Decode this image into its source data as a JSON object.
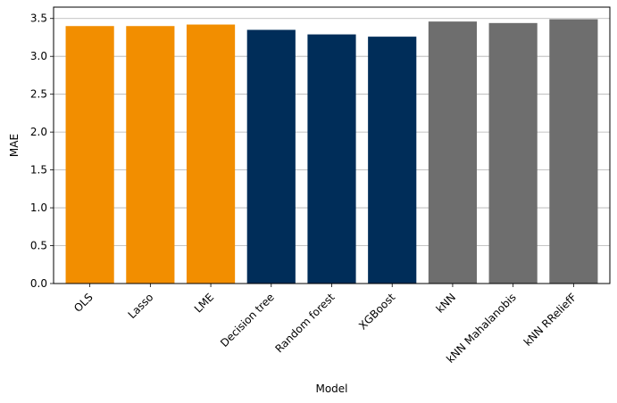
{
  "chart_data": {
    "type": "bar",
    "title": "",
    "xlabel": "Model",
    "ylabel": "MAE",
    "categories": [
      "OLS",
      "Lasso",
      "LME",
      "Decision tree",
      "Random forest",
      "XGBoost",
      "kNN",
      "kNN Mahalanobis",
      "kNN RReliefF"
    ],
    "values": [
      3.4,
      3.4,
      3.42,
      3.35,
      3.29,
      3.26,
      3.46,
      3.44,
      3.49
    ],
    "bar_colors": [
      "#f28e00",
      "#f28e00",
      "#f28e00",
      "#002d59",
      "#002d59",
      "#002d59",
      "#6e6e6e",
      "#6e6e6e",
      "#6e6e6e"
    ],
    "ylim": [
      0,
      3.65
    ],
    "yticks": [
      "0.0",
      "0.5",
      "1.0",
      "1.5",
      "2.0",
      "2.5",
      "3.0",
      "3.5"
    ],
    "grid": "y-axis only",
    "legend": "none"
  }
}
